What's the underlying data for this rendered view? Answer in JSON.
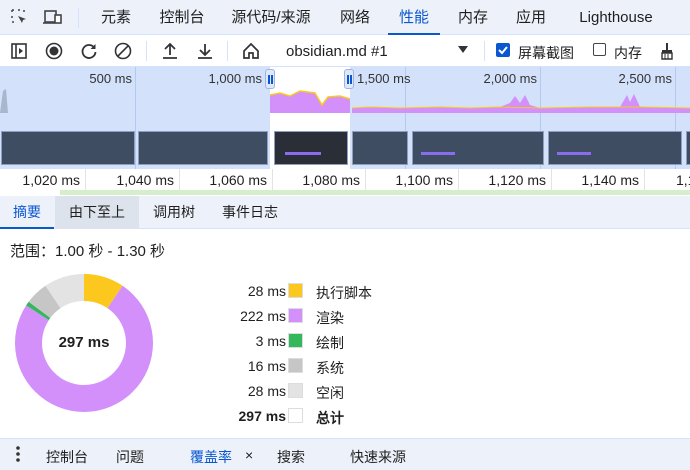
{
  "tabs": [
    {
      "label": "元素"
    },
    {
      "label": "控制台"
    },
    {
      "label": "源代码/来源"
    },
    {
      "label": "网络"
    },
    {
      "label": "性能",
      "active": true
    },
    {
      "label": "内存"
    },
    {
      "label": "应用"
    },
    {
      "label": "Lighthouse"
    }
  ],
  "toolbar": {
    "recording_select": "obsidian.md #1",
    "screenshots_label": "屏幕截图",
    "screenshots_checked": true,
    "memory_label": "内存",
    "memory_checked": false
  },
  "overview": {
    "labels": [
      "500 ms",
      "1,000 ms",
      "1,500 ms",
      "2,000 ms",
      "2,500 ms"
    ],
    "selection": [
      "1.00 s",
      "1.30 s"
    ]
  },
  "ruler": {
    "labels": [
      "1,020 ms",
      "1,040 ms",
      "1,060 ms",
      "1,080 ms",
      "1,100 ms",
      "1,120 ms",
      "1,140 ms",
      "1,1"
    ]
  },
  "subtabs": [
    {
      "label": "摘要",
      "active": true
    },
    {
      "label": "由下至上"
    },
    {
      "label": "调用树"
    },
    {
      "label": "事件日志"
    }
  ],
  "summary": {
    "range": "范围：1.00 秒 - 1.30 秒",
    "total_label": "297 ms",
    "items": [
      {
        "value": "28 ms",
        "ms": 28,
        "name": "执行脚本",
        "color": "#fcc81d"
      },
      {
        "value": "222 ms",
        "ms": 222,
        "name": "渲染",
        "color": "#d38ffa"
      },
      {
        "value": "3 ms",
        "ms": 3,
        "name": "绘制",
        "color": "#35b75c"
      },
      {
        "value": "16 ms",
        "ms": 16,
        "name": "系统",
        "color": "#c6c6c6"
      },
      {
        "value": "28 ms",
        "ms": 28,
        "name": "空闲",
        "color": "#e3e3e3"
      },
      {
        "value": "297 ms",
        "name": "总计",
        "color": "#ffffff"
      }
    ]
  },
  "drawer": {
    "tabs": [
      {
        "label": "控制台"
      },
      {
        "label": "问题"
      },
      {
        "label": "覆盖率",
        "active": true
      },
      {
        "label": "搜索"
      },
      {
        "label": "快速来源"
      }
    ],
    "close": "×"
  },
  "colors": {
    "accent": "#0b57d0",
    "render": "#d38ffa",
    "script": "#fcc81d"
  }
}
